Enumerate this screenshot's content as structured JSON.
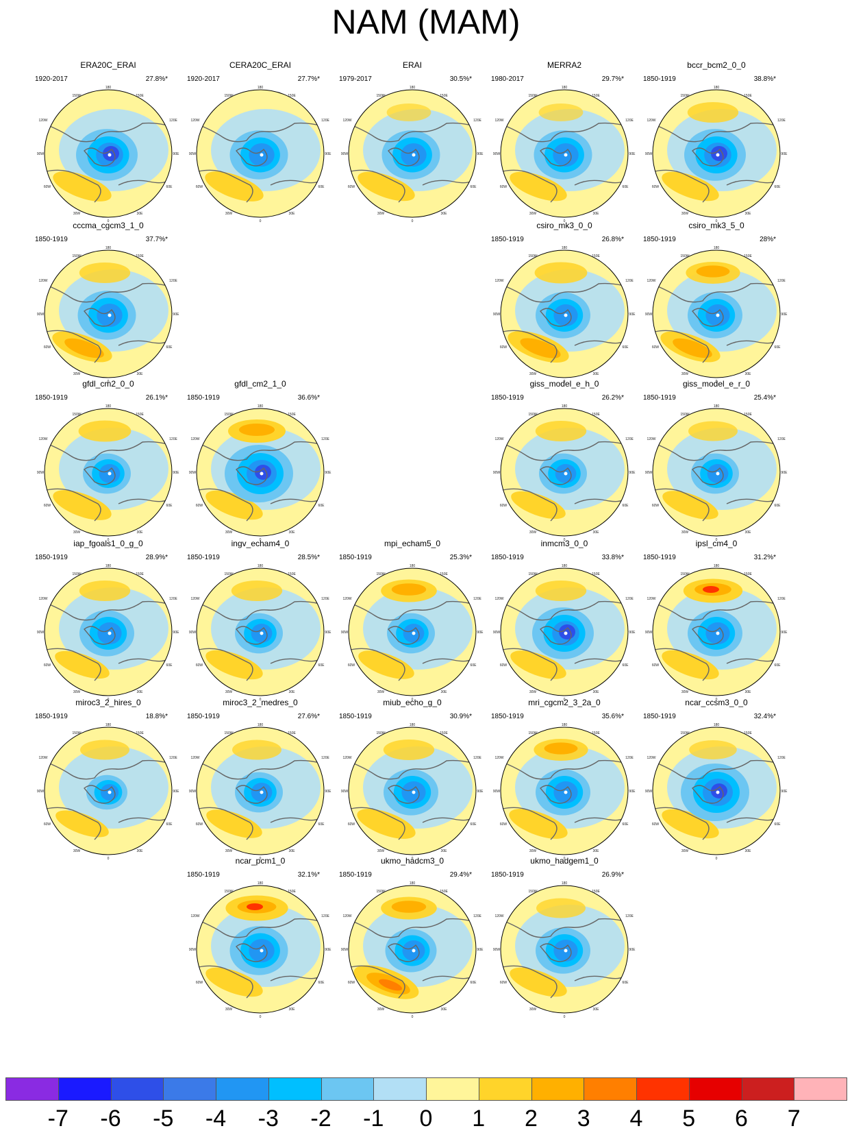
{
  "title": "NAM (MAM)",
  "map_labels": {
    "top": "180",
    "tl": "150W",
    "tr": "150E",
    "ul": "120W",
    "ur": "120E",
    "ml": "90W",
    "mr": "90E",
    "ll": "60W",
    "lr": "60E",
    "bl": "30W",
    "br": "30E",
    "bottom": "0"
  },
  "panels": [
    {
      "name": "ERA20C_ERAI",
      "years": "1920-2017",
      "pct": "27.8%*"
    },
    {
      "name": "CERA20C_ERAI",
      "years": "1920-2017",
      "pct": "27.7%*"
    },
    {
      "name": "ERAI",
      "years": "1979-2017",
      "pct": "30.5%*"
    },
    {
      "name": "MERRA2",
      "years": "1980-2017",
      "pct": "29.7%*"
    },
    {
      "name": "bccr_bcm2_0_0",
      "years": "1850-1919",
      "pct": "38.8%*"
    },
    {
      "name": "cccma_cgcm3_1_0",
      "years": "1850-1919",
      "pct": "37.7%*"
    },
    {
      "name": "csiro_mk3_0_0",
      "years": "1850-1919",
      "pct": "26.8%*"
    },
    {
      "name": "csiro_mk3_5_0",
      "years": "1850-1919",
      "pct": "28%*"
    },
    {
      "name": "gfdl_cm2_0_0",
      "years": "1850-1919",
      "pct": "26.1%*"
    },
    {
      "name": "gfdl_cm2_1_0",
      "years": "1850-1919",
      "pct": "36.6%*"
    },
    {
      "name": "giss_model_e_h_0",
      "years": "1850-1919",
      "pct": "26.2%*"
    },
    {
      "name": "giss_model_e_r_0",
      "years": "1850-1919",
      "pct": "25.4%*"
    },
    {
      "name": "iap_fgoals1_0_g_0",
      "years": "1850-1919",
      "pct": "28.9%*"
    },
    {
      "name": "ingv_echam4_0",
      "years": "1850-1919",
      "pct": "28.5%*"
    },
    {
      "name": "mpi_echam5_0",
      "years": "1850-1919",
      "pct": "25.3%*"
    },
    {
      "name": "inmcm3_0_0",
      "years": "1850-1919",
      "pct": "33.8%*"
    },
    {
      "name": "ipsl_cm4_0",
      "years": "1850-1919",
      "pct": "31.2%*"
    },
    {
      "name": "miroc3_2_hires_0",
      "years": "1850-1919",
      "pct": "18.8%*"
    },
    {
      "name": "miroc3_2_medres_0",
      "years": "1850-1919",
      "pct": "27.6%*"
    },
    {
      "name": "miub_echo_g_0",
      "years": "1850-1919",
      "pct": "30.9%*"
    },
    {
      "name": "mri_cgcm2_3_2a_0",
      "years": "1850-1919",
      "pct": "35.6%*"
    },
    {
      "name": "ncar_ccsm3_0_0",
      "years": "1850-1919",
      "pct": "32.4%*"
    },
    {
      "name": "ncar_pcm1_0",
      "years": "1850-1919",
      "pct": "32.1%*"
    },
    {
      "name": "ukmo_hadcm3_0",
      "years": "1850-1919",
      "pct": "29.4%*"
    },
    {
      "name": "ukmo_hadgem1_0",
      "years": "1850-1919",
      "pct": "26.9%*"
    }
  ],
  "colorbar": {
    "labels": [
      "-7",
      "-6",
      "-5",
      "-4",
      "-3",
      "-2",
      "-1",
      "0",
      "1",
      "2",
      "3",
      "4",
      "5",
      "6",
      "7"
    ],
    "colors": [
      "#8a2be2",
      "#1a1aff",
      "#2e4fe8",
      "#3b7ae8",
      "#2196f3",
      "#00bfff",
      "#6cc6f2",
      "#b2dff5",
      "#fff59a",
      "#ffd42a",
      "#ffb000",
      "#ff7f00",
      "#ff3300",
      "#e60000",
      "#cc1f1f",
      "#ffb3b8"
    ]
  }
}
